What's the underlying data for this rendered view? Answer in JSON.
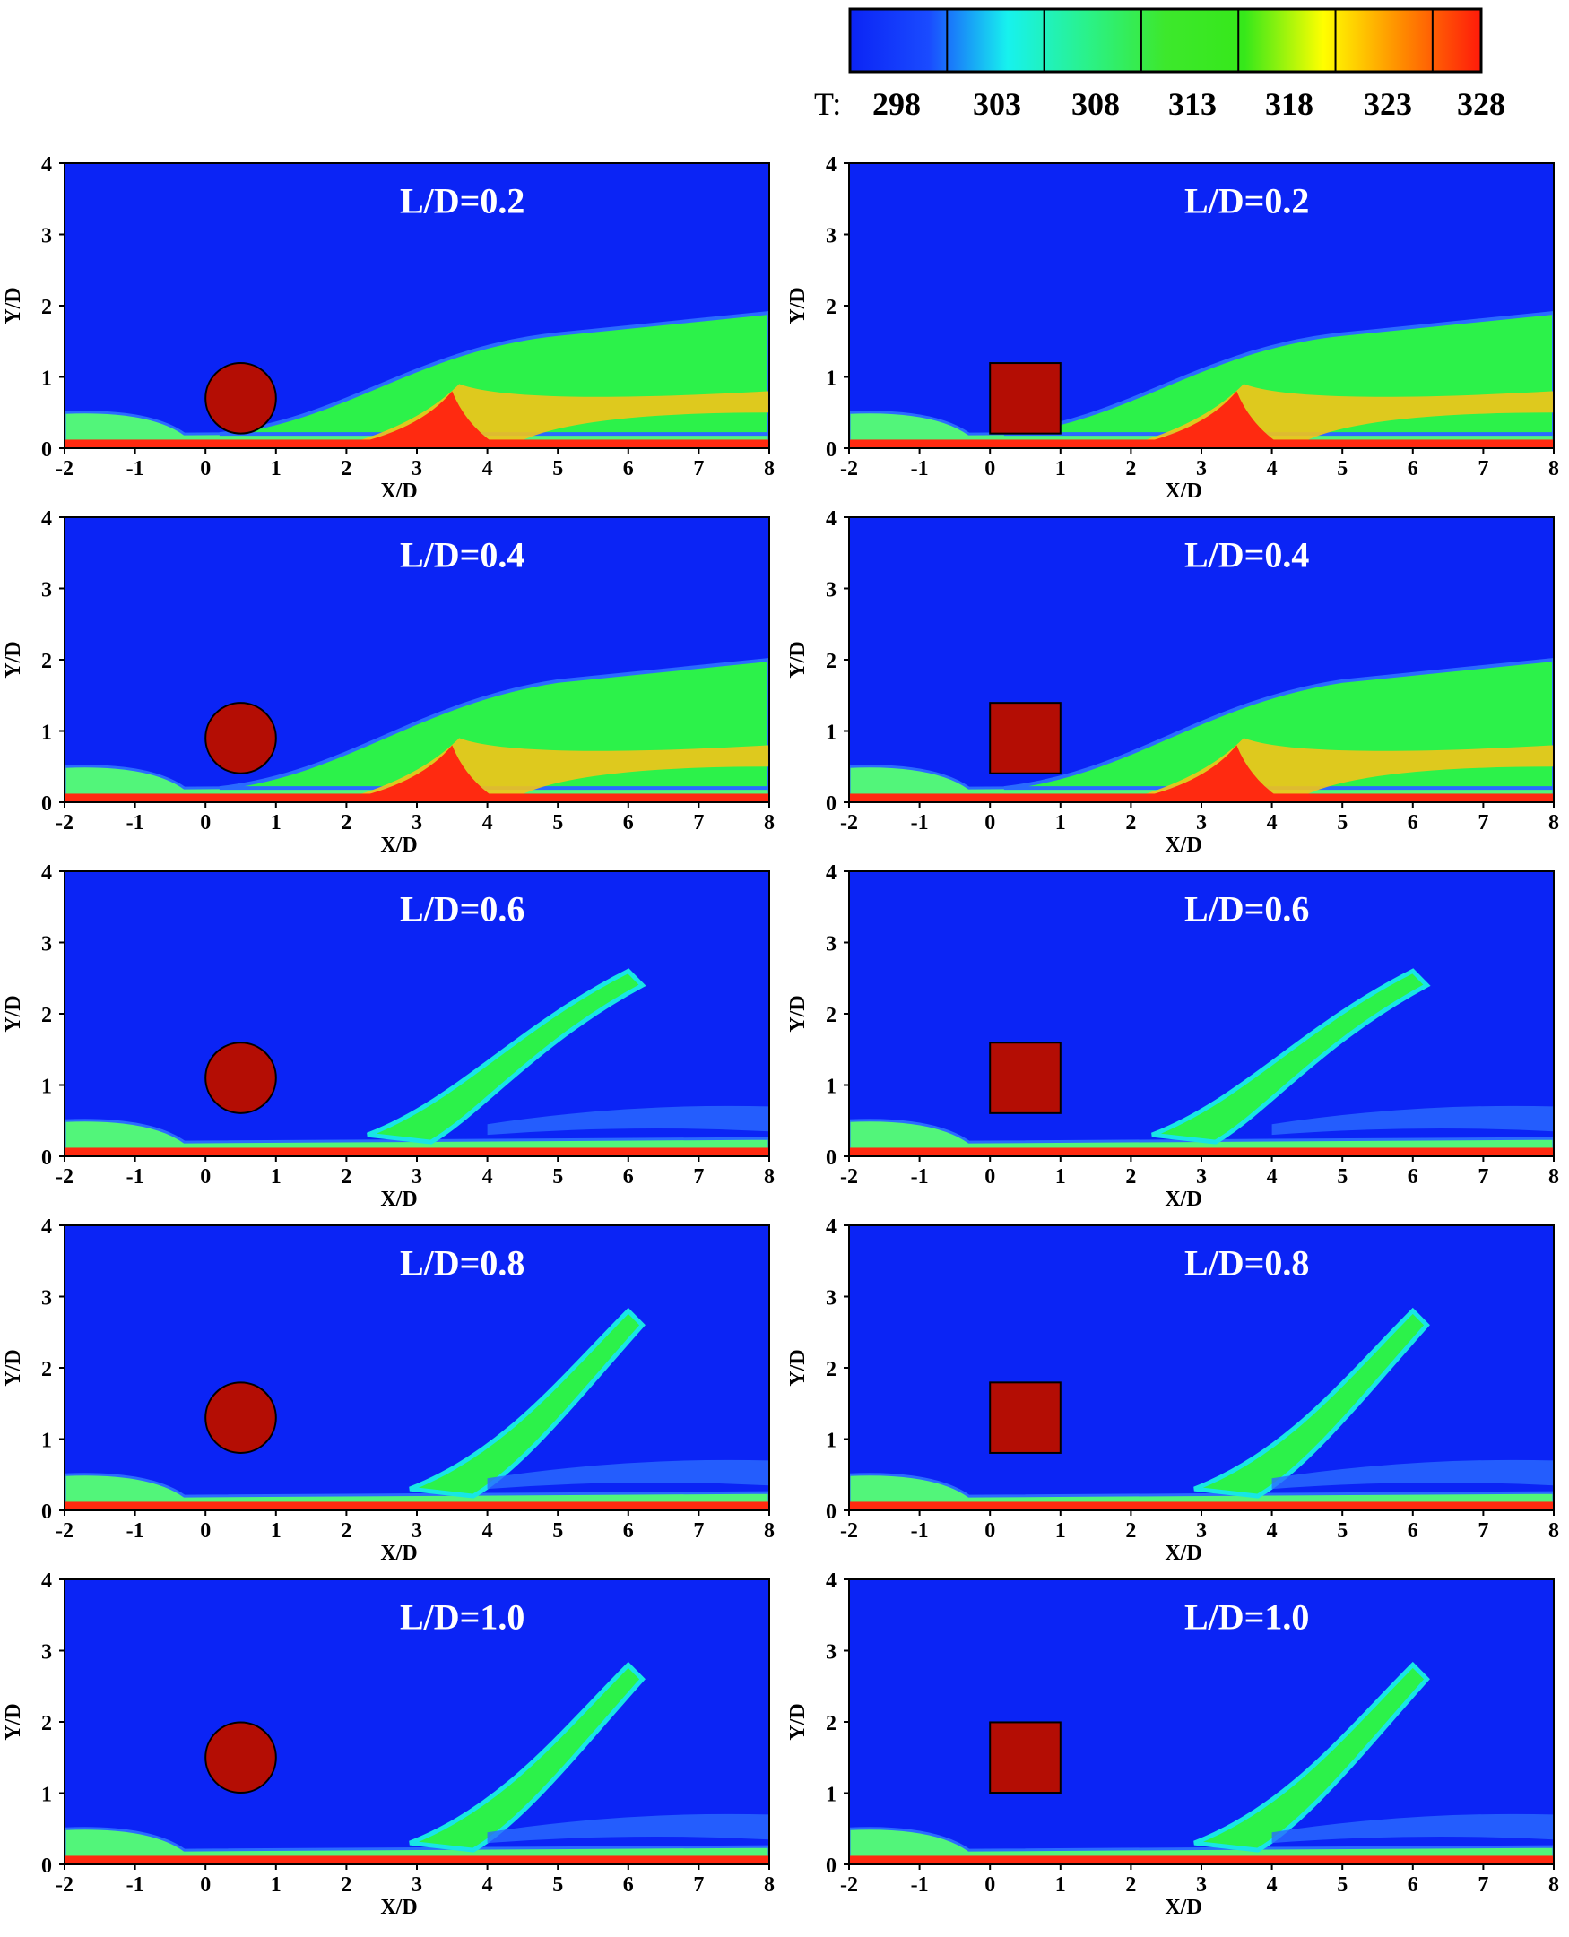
{
  "colorbar": {
    "variable_label": "T:",
    "ticks": [
      "298",
      "303",
      "308",
      "313",
      "318",
      "323",
      "328"
    ],
    "stops": [
      "#0b24f5",
      "#1a4bff",
      "#17f2ee",
      "#2af28a",
      "#3de82c",
      "#36e81a",
      "#ffff00",
      "#ff8a00",
      "#ff1a0a"
    ]
  },
  "chart_data": [
    {
      "type": "heatmap",
      "panel": "cylinder-LD-0.2",
      "title": "L/D=0.2",
      "obstacle": "circle",
      "xlabel": "X/D",
      "ylabel": "Y/D",
      "xlim": [
        -2,
        8
      ],
      "ylim": [
        0,
        4
      ],
      "xticks": [
        "-2",
        "-1",
        "0",
        "1",
        "2",
        "3",
        "4",
        "5",
        "6",
        "7",
        "8"
      ],
      "yticks": [
        "0",
        "1",
        "2",
        "3",
        "4"
      ],
      "obstacle_center": [
        0.5,
        0.7
      ],
      "obstacle_size": 1.0
    },
    {
      "type": "heatmap",
      "panel": "square-LD-0.2",
      "title": "L/D=0.2",
      "obstacle": "square",
      "xlabel": "X/D",
      "ylabel": "Y/D",
      "xlim": [
        -2,
        8
      ],
      "ylim": [
        0,
        4
      ],
      "xticks": [
        "-2",
        "-1",
        "0",
        "1",
        "2",
        "3",
        "4",
        "5",
        "6",
        "7",
        "8"
      ],
      "yticks": [
        "0",
        "1",
        "2",
        "3",
        "4"
      ],
      "obstacle_center": [
        0.5,
        0.7
      ],
      "obstacle_size": 1.0
    },
    {
      "type": "heatmap",
      "panel": "cylinder-LD-0.4",
      "title": "L/D=0.4",
      "obstacle": "circle",
      "xlabel": "X/D",
      "ylabel": "Y/D",
      "xlim": [
        -2,
        8
      ],
      "ylim": [
        0,
        4
      ],
      "xticks": [
        "-2",
        "-1",
        "0",
        "1",
        "2",
        "3",
        "4",
        "5",
        "6",
        "7",
        "8"
      ],
      "yticks": [
        "0",
        "1",
        "2",
        "3",
        "4"
      ],
      "obstacle_center": [
        0.5,
        0.9
      ],
      "obstacle_size": 1.0
    },
    {
      "type": "heatmap",
      "panel": "square-LD-0.4",
      "title": "L/D=0.4",
      "obstacle": "square",
      "xlabel": "X/D",
      "ylabel": "Y/D",
      "xlim": [
        -2,
        8
      ],
      "ylim": [
        0,
        4
      ],
      "xticks": [
        "-2",
        "-1",
        "0",
        "1",
        "2",
        "3",
        "4",
        "5",
        "6",
        "7",
        "8"
      ],
      "yticks": [
        "0",
        "1",
        "2",
        "3",
        "4"
      ],
      "obstacle_center": [
        0.5,
        0.9
      ],
      "obstacle_size": 1.0
    },
    {
      "type": "heatmap",
      "panel": "cylinder-LD-0.6",
      "title": "L/D=0.6",
      "obstacle": "circle",
      "xlabel": "X/D",
      "ylabel": "Y/D",
      "xlim": [
        -2,
        8
      ],
      "ylim": [
        0,
        4
      ],
      "xticks": [
        "-2",
        "-1",
        "0",
        "1",
        "2",
        "3",
        "4",
        "5",
        "6",
        "7",
        "8"
      ],
      "yticks": [
        "0",
        "1",
        "2",
        "3",
        "4"
      ],
      "obstacle_center": [
        0.5,
        1.1
      ],
      "obstacle_size": 1.0
    },
    {
      "type": "heatmap",
      "panel": "square-LD-0.6",
      "title": "L/D=0.6",
      "obstacle": "square",
      "xlabel": "X/D",
      "ylabel": "Y/D",
      "xlim": [
        -2,
        8
      ],
      "ylim": [
        0,
        4
      ],
      "xticks": [
        "-2",
        "-1",
        "0",
        "1",
        "2",
        "3",
        "4",
        "5",
        "6",
        "7",
        "8"
      ],
      "yticks": [
        "0",
        "1",
        "2",
        "3",
        "4"
      ],
      "obstacle_center": [
        0.5,
        1.1
      ],
      "obstacle_size": 1.0
    },
    {
      "type": "heatmap",
      "panel": "cylinder-LD-0.8",
      "title": "L/D=0.8",
      "obstacle": "circle",
      "xlabel": "X/D",
      "ylabel": "Y/D",
      "xlim": [
        -2,
        8
      ],
      "ylim": [
        0,
        4
      ],
      "xticks": [
        "-2",
        "-1",
        "0",
        "1",
        "2",
        "3",
        "4",
        "5",
        "6",
        "7",
        "8"
      ],
      "yticks": [
        "0",
        "1",
        "2",
        "3",
        "4"
      ],
      "obstacle_center": [
        0.5,
        1.3
      ],
      "obstacle_size": 1.0
    },
    {
      "type": "heatmap",
      "panel": "square-LD-0.8",
      "title": "L/D=0.8",
      "obstacle": "square",
      "xlabel": "X/D",
      "ylabel": "Y/D",
      "xlim": [
        -2,
        8
      ],
      "ylim": [
        0,
        4
      ],
      "xticks": [
        "-2",
        "-1",
        "0",
        "1",
        "2",
        "3",
        "4",
        "5",
        "6",
        "7",
        "8"
      ],
      "yticks": [
        "0",
        "1",
        "2",
        "3",
        "4"
      ],
      "obstacle_center": [
        0.5,
        1.3
      ],
      "obstacle_size": 1.0
    },
    {
      "type": "heatmap",
      "panel": "cylinder-LD-1.0",
      "title": "L/D=1.0",
      "obstacle": "circle",
      "xlabel": "X/D",
      "ylabel": "Y/D",
      "xlim": [
        -2,
        8
      ],
      "ylim": [
        0,
        4
      ],
      "xticks": [
        "-2",
        "-1",
        "0",
        "1",
        "2",
        "3",
        "4",
        "5",
        "6",
        "7",
        "8"
      ],
      "yticks": [
        "0",
        "1",
        "2",
        "3",
        "4"
      ],
      "obstacle_center": [
        0.5,
        1.5
      ],
      "obstacle_size": 1.0
    },
    {
      "type": "heatmap",
      "panel": "square-LD-1.0",
      "title": "L/D=1.0",
      "obstacle": "square",
      "xlabel": "X/D",
      "ylabel": "Y/D",
      "xlim": [
        -2,
        8
      ],
      "ylim": [
        0,
        4
      ],
      "xticks": [
        "-2",
        "-1",
        "0",
        "1",
        "2",
        "3",
        "4",
        "5",
        "6",
        "7",
        "8"
      ],
      "yticks": [
        "0",
        "1",
        "2",
        "3",
        "4"
      ],
      "obstacle_center": [
        0.5,
        1.5
      ],
      "obstacle_size": 1.0
    }
  ]
}
